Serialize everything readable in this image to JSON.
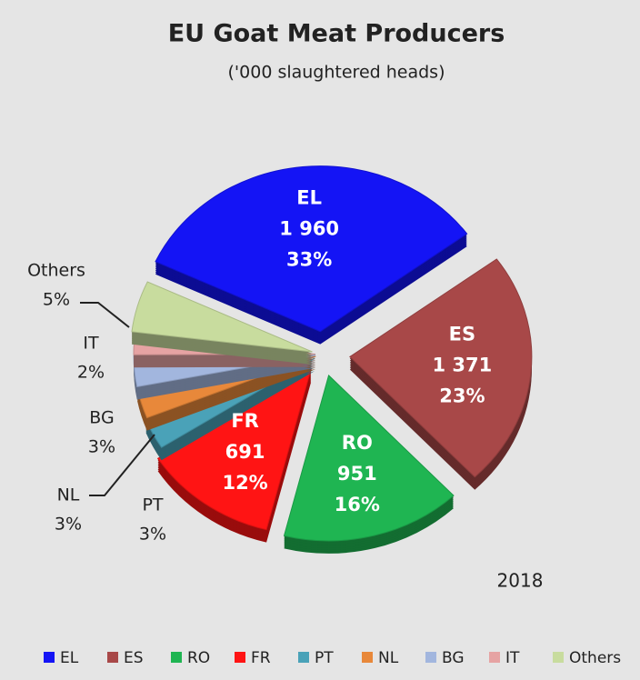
{
  "chart_data": {
    "type": "pie",
    "title": "EU Goat Meat Producers",
    "subtitle": "('000 slaughtered heads)",
    "annotation": "2018",
    "categories": [
      "EL",
      "ES",
      "RO",
      "FR",
      "PT",
      "NL",
      "BG",
      "IT",
      "Others"
    ],
    "values": [
      33,
      23,
      16,
      12,
      3,
      3,
      3,
      2,
      5
    ],
    "value_labels": [
      "33%",
      "23%",
      "16%",
      "12%",
      "3%",
      "3%",
      "3%",
      "2%",
      "5%"
    ],
    "counts": [
      1960,
      1371,
      951,
      691,
      null,
      null,
      null,
      null,
      null
    ],
    "count_labels": [
      "1 960",
      "1 371",
      "951",
      "691",
      null,
      null,
      null,
      null,
      null
    ],
    "colors": [
      "#1414f5",
      "#a84848",
      "#1fb552",
      "#ff1414",
      "#4aa2b8",
      "#e8883a",
      "#a2b6de",
      "#e6a3a3",
      "#c8dc9e"
    ],
    "legend": "bottom"
  }
}
